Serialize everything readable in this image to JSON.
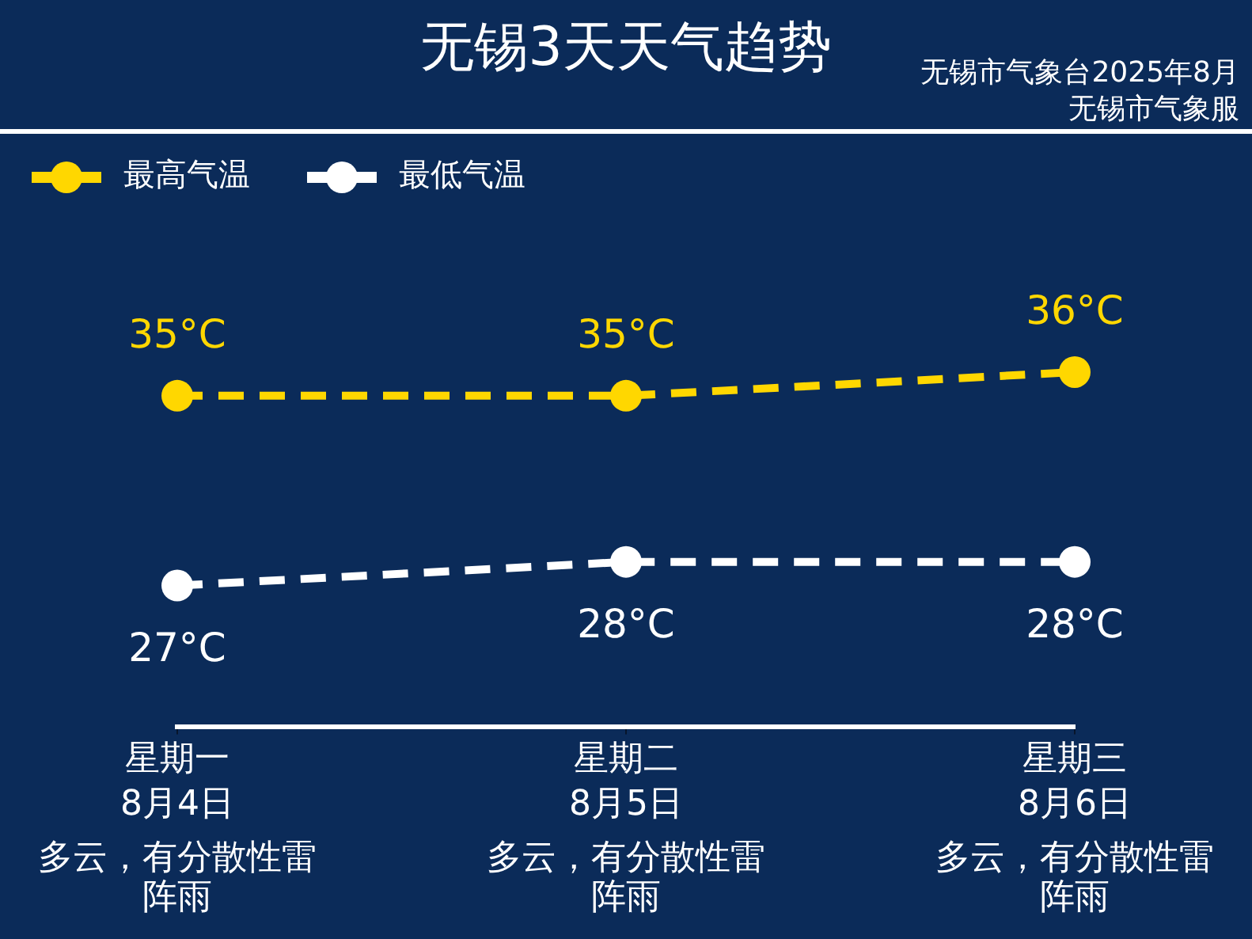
{
  "chart_data": {
    "type": "line",
    "title": "无锡3天天气趋势",
    "annotations": [
      "无锡市气象台2025年8月",
      "无锡市气象服",
      "多云，有分散性雷阵雨",
      "多云，有分散性雷阵雨",
      "多云，有分散性雷阵雨"
    ],
    "categories": [
      "星期一\n8月4日",
      "星期二\n8月5日",
      "星期三\n8月6日"
    ],
    "series": [
      {
        "name": "最高气温",
        "color": "#ffd700",
        "values": [
          35,
          35,
          36
        ],
        "value_labels": [
          "35°C",
          "35°C",
          "36°C"
        ]
      },
      {
        "name": "最低气温",
        "color": "#ffffff",
        "values": [
          27,
          28,
          28
        ],
        "value_labels": [
          "27°C",
          "28°C",
          "28°C"
        ]
      }
    ],
    "legend": "top left",
    "marker": "circle",
    "line_style": "dashed",
    "tick_labels": "x"
  }
}
